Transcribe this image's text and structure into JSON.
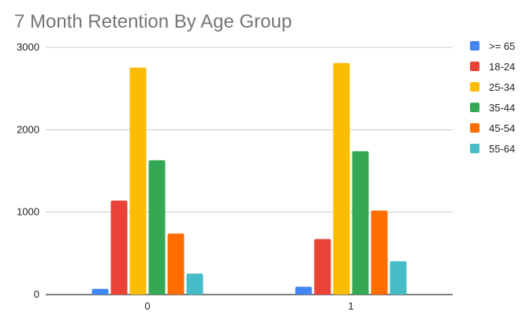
{
  "chart_data": {
    "type": "bar",
    "title": "7 Month Retention By Age Group",
    "xlabel": "",
    "ylabel": "",
    "categories": [
      "0",
      "1"
    ],
    "yticks": [
      "0",
      "1000",
      "2000",
      "3000"
    ],
    "ylim": [
      0,
      3000
    ],
    "grid": true,
    "legend_position": "right",
    "series": [
      {
        "name": ">= 65",
        "color": "#4285F4",
        "values": [
          70,
          95
        ]
      },
      {
        "name": "18-24",
        "color": "#EA4335",
        "values": [
          1140,
          675
        ]
      },
      {
        "name": "25-34",
        "color": "#FBBC04",
        "values": [
          2755,
          2810
        ]
      },
      {
        "name": "35-44",
        "color": "#34A853",
        "values": [
          1630,
          1740
        ]
      },
      {
        "name": "45-54",
        "color": "#FF6D01",
        "values": [
          740,
          1020
        ]
      },
      {
        "name": "55-64",
        "color": "#46BDC6",
        "values": [
          255,
          405
        ]
      }
    ]
  }
}
